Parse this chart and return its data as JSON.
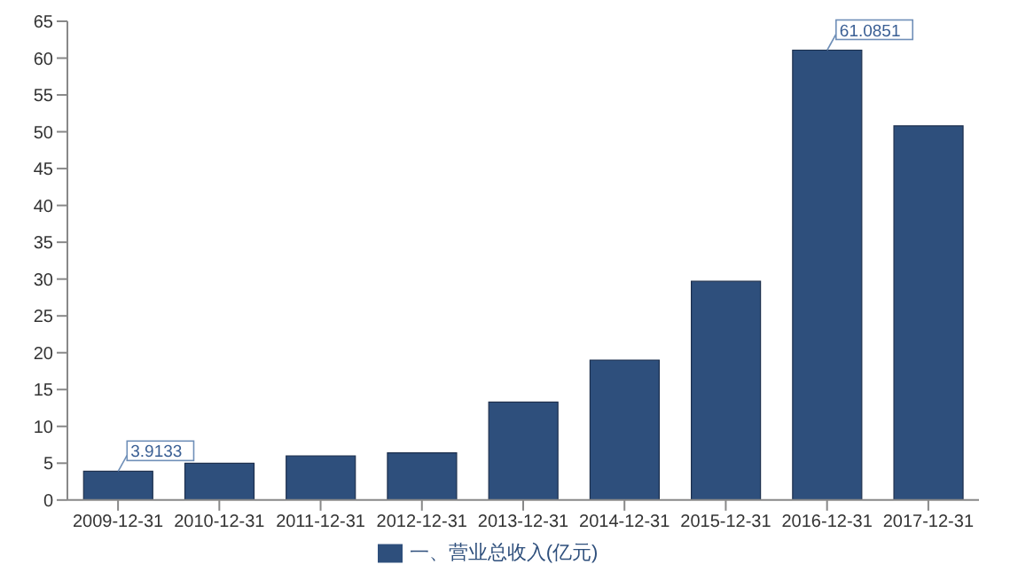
{
  "chart_data": {
    "type": "bar",
    "categories": [
      "2009-12-31",
      "2010-12-31",
      "2011-12-31",
      "2012-12-31",
      "2013-12-31",
      "2014-12-31",
      "2015-12-31",
      "2016-12-31",
      "2017-12-31"
    ],
    "series": [
      {
        "name": "一、营业总收入(亿元)",
        "color": "#2e4f7c",
        "values": [
          3.9133,
          5.0,
          6.0,
          6.4,
          13.3,
          19.0,
          29.7,
          61.0851,
          50.8
        ],
        "value_labels": [
          "3.9133",
          null,
          null,
          null,
          null,
          null,
          null,
          "61.0851",
          null
        ]
      }
    ],
    "ylim": [
      0,
      65
    ],
    "yticks": [
      0,
      5,
      10,
      15,
      20,
      25,
      30,
      35,
      40,
      45,
      50,
      55,
      60,
      65
    ],
    "grid": false,
    "legend": "bottom"
  }
}
